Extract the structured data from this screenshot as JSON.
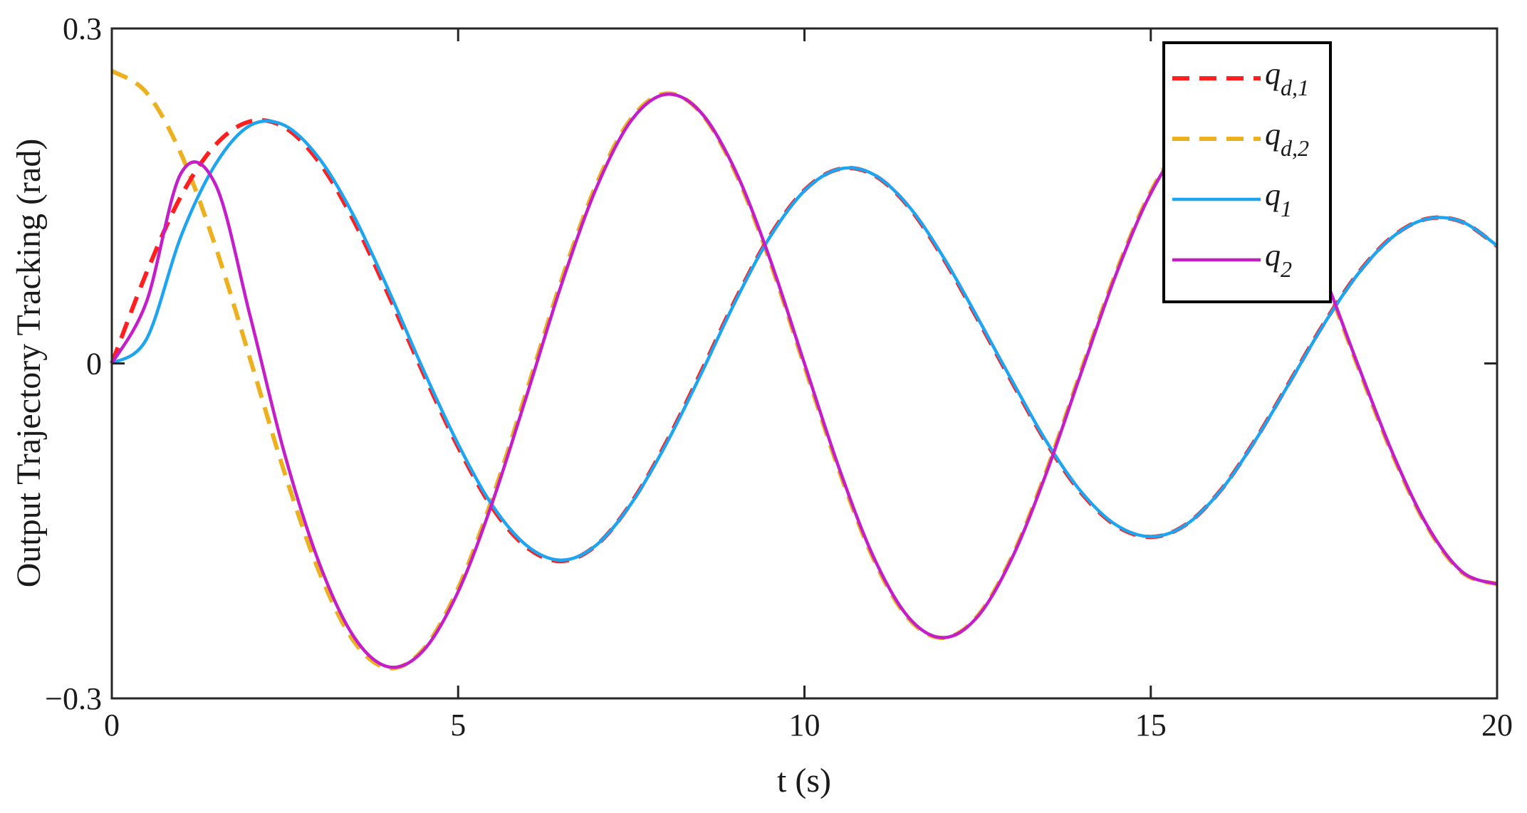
{
  "chart_data": {
    "type": "line",
    "title": "",
    "xlabel": "t (s)",
    "ylabel": "Output Trajectory Tracking (rad)",
    "xlim": [
      0,
      20
    ],
    "ylim": [
      -0.3,
      0.3
    ],
    "x_ticks": [
      0,
      5,
      10,
      15,
      20
    ],
    "x_tick_labels": [
      "0",
      "5",
      "10",
      "15",
      "20"
    ],
    "y_ticks": [
      -0.3,
      0,
      0.3
    ],
    "y_tick_labels": [
      "−0.3",
      "0",
      "0.3"
    ],
    "grid": false,
    "legend_position": "top-right",
    "x": [
      0,
      0.5,
      1,
      1.5,
      2,
      2.5,
      3,
      3.5,
      4,
      4.5,
      5,
      5.5,
      6,
      6.5,
      7,
      7.5,
      8,
      8.5,
      9,
      9.5,
      10,
      10.5,
      11,
      11.5,
      12,
      12.5,
      13,
      13.5,
      14,
      14.5,
      15,
      15.5,
      16,
      16.5,
      17,
      17.5,
      18,
      18.5,
      19,
      19.5,
      20
    ],
    "series": [
      {
        "name": "q_{d,1}",
        "label_main": "q",
        "label_sub": "d,1",
        "color": "#ff1f1f",
        "style": "dashed",
        "values": [
          0,
          0.0811,
          0.15,
          0.196,
          0.2168,
          0.2112,
          0.1796,
          0.1269,
          0.0606,
          -0.0092,
          -0.0749,
          -0.1299,
          -0.1651,
          -0.177,
          -0.1625,
          -0.1248,
          -0.0713,
          -0.0087,
          0.0566,
          0.114,
          0.1551,
          0.1741,
          0.1688,
          0.1405,
          0.0947,
          0.0398,
          -0.0171,
          -0.0717,
          -0.1162,
          -0.1453,
          -0.1554,
          -0.1447,
          -0.1143,
          -0.0694,
          -0.017,
          0.0358,
          0.0813,
          0.114,
          0.1297,
          0.1266,
          0.1053
        ]
      },
      {
        "name": "q_{d,2}",
        "label_main": "q",
        "label_sub": "d,2",
        "color": "#edb120",
        "style": "dashed",
        "values": [
          0.262,
          0.2426,
          0.1875,
          0.104,
          0.0034,
          -0.099,
          -0.1876,
          -0.2494,
          -0.2729,
          -0.2558,
          -0.2012,
          -0.1194,
          -0.0225,
          0.0761,
          0.161,
          0.2195,
          0.2417,
          0.2247,
          0.1714,
          0.0917,
          -0.0025,
          -0.096,
          -0.1756,
          -0.2283,
          -0.2458,
          -0.2261,
          -0.1724,
          -0.095,
          -0.0055,
          0.0818,
          0.1539,
          0.2001,
          0.2148,
          0.1965,
          0.1479,
          0.0775,
          -0.0044,
          -0.083,
          -0.1473,
          -0.1875,
          -0.1976
        ]
      },
      {
        "name": "q_{1}",
        "label_main": "q",
        "label_sub": "1",
        "color": "#1fa5ef",
        "style": "solid",
        "values": [
          0,
          0.0217,
          0.1142,
          0.1787,
          0.2133,
          0.213,
          0.1832,
          0.1313,
          0.065,
          -0.006,
          -0.0723,
          -0.1277,
          -0.1636,
          -0.1762,
          -0.1624,
          -0.1254,
          -0.0726,
          -0.0104,
          0.0553,
          0.1131,
          0.1546,
          0.1741,
          0.1692,
          0.1412,
          0.0958,
          0.041,
          -0.0158,
          -0.0706,
          -0.1153,
          -0.1447,
          -0.1551,
          -0.1448,
          -0.1146,
          -0.0699,
          -0.0176,
          0.0352,
          0.0808,
          0.1137,
          0.1296,
          0.1267,
          0.1055
        ]
      },
      {
        "name": "q_{2}",
        "label_main": "q",
        "label_sub": "2",
        "color": "#c41ec8",
        "style": "solid",
        "values": [
          0,
          0.055,
          0.1705,
          0.1598,
          0.0417,
          -0.0822,
          -0.1798,
          -0.2453,
          -0.2718,
          -0.257,
          -0.2044,
          -0.1234,
          -0.0267,
          0.0722,
          0.1579,
          0.2176,
          0.241,
          0.2252,
          0.173,
          0.0939,
          -0.0001,
          -0.0937,
          -0.1737,
          -0.2272,
          -0.2456,
          -0.2268,
          -0.1738,
          -0.0969,
          -0.0075,
          0.0799,
          0.1524,
          0.1993,
          0.2148,
          0.1971,
          0.1491,
          0.0791,
          -0.0027,
          -0.0815,
          -0.1462,
          -0.1869,
          -0.1976
        ]
      }
    ]
  }
}
